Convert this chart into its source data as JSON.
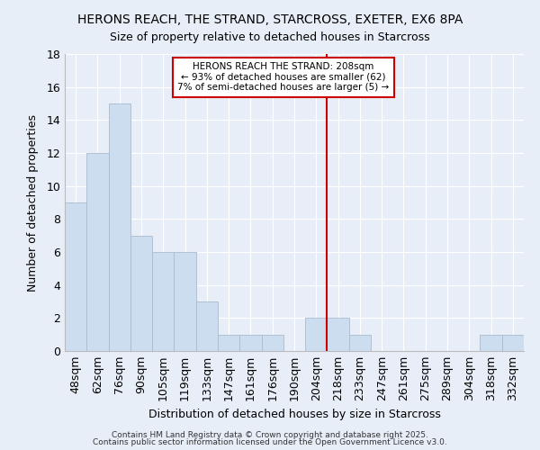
{
  "title_line1": "HERONS REACH, THE STRAND, STARCROSS, EXETER, EX6 8PA",
  "title_line2": "Size of property relative to detached houses in Starcross",
  "xlabel": "Distribution of detached houses by size in Starcross",
  "ylabel": "Number of detached properties",
  "categories": [
    "48sqm",
    "62sqm",
    "76sqm",
    "90sqm",
    "105sqm",
    "119sqm",
    "133sqm",
    "147sqm",
    "161sqm",
    "176sqm",
    "190sqm",
    "204sqm",
    "218sqm",
    "233sqm",
    "247sqm",
    "261sqm",
    "275sqm",
    "289sqm",
    "304sqm",
    "318sqm",
    "332sqm"
  ],
  "values": [
    9,
    12,
    15,
    7,
    6,
    6,
    3,
    1,
    1,
    1,
    0,
    2,
    2,
    1,
    0,
    0,
    0,
    0,
    0,
    1,
    1
  ],
  "bar_color": "#ccddf0",
  "bar_edge_color": "#aabbcc",
  "background_color": "#e8eef8",
  "grid_color": "#ffffff",
  "vline_x": 11.5,
  "vline_color": "#cc0000",
  "annotation_title": "HERONS REACH THE STRAND: 208sqm",
  "annotation_line2": "← 93% of detached houses are smaller (62)",
  "annotation_line3": "7% of semi-detached houses are larger (5) →",
  "annotation_box_color": "#ffffff",
  "annotation_border_color": "#cc0000",
  "ylim": [
    0,
    18
  ],
  "yticks": [
    0,
    2,
    4,
    6,
    8,
    10,
    12,
    14,
    16,
    18
  ],
  "footer_line1": "Contains HM Land Registry data © Crown copyright and database right 2025.",
  "footer_line2": "Contains public sector information licensed under the Open Government Licence v3.0."
}
